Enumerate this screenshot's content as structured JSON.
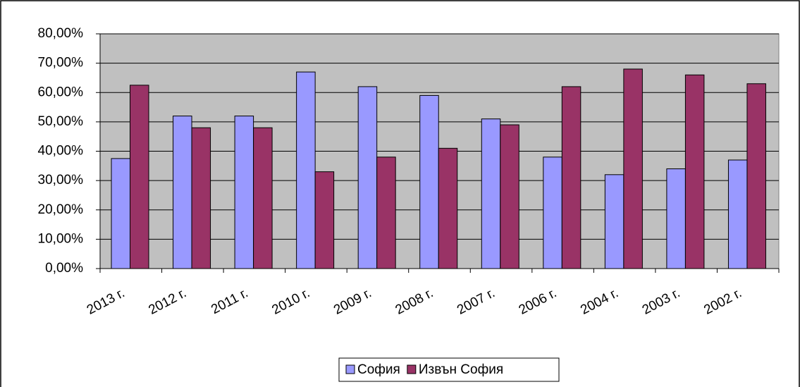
{
  "chart_data": {
    "type": "bar",
    "categories": [
      "2013 г.",
      "2012 г.",
      "2011 г.",
      "2010 г.",
      "2009 г.",
      "2008 г.",
      "2007 г.",
      "2006 г.",
      "2004 г.",
      "2003 г.",
      "2002 г."
    ],
    "series": [
      {
        "name": "София",
        "color": "#9999ff",
        "values": [
          37.5,
          52,
          52,
          67,
          62,
          59,
          51,
          38,
          32,
          34,
          37
        ]
      },
      {
        "name": "Извън София",
        "color": "#993366",
        "values": [
          62.5,
          48,
          48,
          33,
          38,
          41,
          49,
          62,
          68,
          66,
          63
        ]
      }
    ],
    "ylim": [
      0,
      80
    ],
    "yticks": [
      {
        "value": 0,
        "label": "0,00%"
      },
      {
        "value": 10,
        "label": "10,00%"
      },
      {
        "value": 20,
        "label": "20,00%"
      },
      {
        "value": 30,
        "label": "30,00%"
      },
      {
        "value": 40,
        "label": "40,00%"
      },
      {
        "value": 50,
        "label": "50,00%"
      },
      {
        "value": 60,
        "label": "60,00%"
      },
      {
        "value": 70,
        "label": "70,00%"
      },
      {
        "value": 80,
        "label": "80,00%"
      }
    ],
    "grid": true,
    "plot_background": "#c0c0c0",
    "legend": "bottom"
  }
}
